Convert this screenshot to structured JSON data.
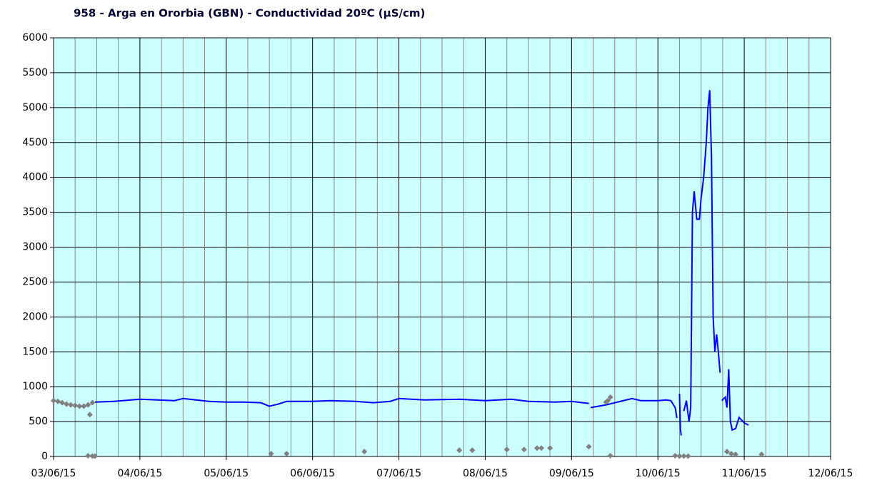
{
  "chart_data": {
    "type": "line",
    "title": "958 - Arga en Ororbia (GBN) - Conductividad 20ºC (µS/cm)",
    "xlim": [
      0,
      9
    ],
    "xticks": [
      {
        "value": 0,
        "label": "03/06/15"
      },
      {
        "value": 1,
        "label": "04/06/15"
      },
      {
        "value": 2,
        "label": "05/06/15"
      },
      {
        "value": 3,
        "label": "06/06/15"
      },
      {
        "value": 4,
        "label": "07/06/15"
      },
      {
        "value": 5,
        "label": "08/06/15"
      },
      {
        "value": 6,
        "label": "09/06/15"
      },
      {
        "value": 7,
        "label": "10/06/15"
      },
      {
        "value": 8,
        "label": "11/06/15"
      },
      {
        "value": 9,
        "label": "12/06/15"
      }
    ],
    "xminorticks": [
      0.25,
      0.5,
      0.75,
      1.25,
      1.5,
      1.75,
      2.25,
      2.5,
      2.75,
      3.25,
      3.5,
      3.75,
      4.25,
      4.5,
      4.75,
      5.25,
      5.5,
      5.75,
      6.25,
      6.5,
      6.75,
      7.25,
      7.5,
      7.75,
      8.25,
      8.5,
      8.75
    ],
    "ylim": [
      0,
      6000
    ],
    "yticks": [
      0,
      500,
      1000,
      1500,
      2000,
      2500,
      3000,
      3500,
      4000,
      4500,
      5000,
      5500,
      6000
    ],
    "grid": true,
    "background": "#ccffff",
    "series": [
      {
        "color": "#0000ff",
        "mode": "line",
        "x": [
          0.48,
          0.7,
          1.0,
          1.2,
          1.4,
          1.5,
          1.8,
          2.0,
          2.2,
          2.4,
          2.5,
          2.6,
          2.7,
          3.0,
          3.2,
          3.5,
          3.7,
          3.9,
          4.0,
          4.3,
          4.7,
          5.0,
          5.3,
          5.5,
          5.8,
          6.0,
          6.2,
          null,
          6.22,
          6.4,
          6.6,
          6.7,
          6.8,
          7.0,
          7.1,
          7.15,
          7.2,
          7.22,
          null,
          7.25,
          7.26,
          7.27,
          null,
          7.3,
          7.33,
          7.36,
          7.38,
          7.4,
          7.42,
          7.45,
          7.48,
          7.5,
          7.53,
          7.56,
          7.58,
          7.6,
          7.62,
          7.64,
          7.66,
          7.68,
          7.7,
          7.72,
          null,
          7.74,
          7.78,
          7.8,
          7.82,
          7.84,
          7.86,
          7.9,
          7.94,
          8.0,
          8.05
        ],
        "values": [
          780,
          790,
          820,
          810,
          800,
          830,
          790,
          780,
          780,
          770,
          720,
          750,
          790,
          790,
          800,
          790,
          770,
          790,
          830,
          810,
          820,
          800,
          820,
          790,
          780,
          790,
          760,
          null,
          700,
          740,
          800,
          830,
          800,
          800,
          810,
          800,
          700,
          550,
          null,
          900,
          400,
          300,
          null,
          650,
          800,
          500,
          700,
          3500,
          3800,
          3400,
          3400,
          3700,
          4000,
          4500,
          5000,
          5250,
          4300,
          2000,
          1500,
          1750,
          1500,
          1200,
          null,
          800,
          850,
          700,
          1250,
          500,
          380,
          400,
          560,
          480,
          450
        ]
      },
      {
        "color": "#808080",
        "mode": "markers",
        "x": [
          0,
          0.05,
          0.1,
          0.15,
          0.2,
          0.25,
          0.3,
          0.35,
          0.4,
          0.45,
          0.42,
          0.4,
          0.45,
          0.48,
          2.52,
          2.7,
          3.6,
          4.7,
          4.85,
          5.25,
          5.45,
          5.6,
          5.65,
          5.75,
          6.2,
          6.4,
          6.42,
          6.45,
          6.45,
          7.2,
          7.25,
          7.3,
          7.35,
          7.8,
          7.85,
          7.9,
          8.2
        ],
        "values": [
          800,
          790,
          770,
          750,
          740,
          730,
          720,
          720,
          740,
          770,
          600,
          10,
          5,
          5,
          40,
          40,
          70,
          90,
          90,
          100,
          100,
          120,
          120,
          120,
          140,
          780,
          800,
          850,
          10,
          10,
          5,
          5,
          5,
          70,
          40,
          30,
          30
        ]
      }
    ]
  }
}
